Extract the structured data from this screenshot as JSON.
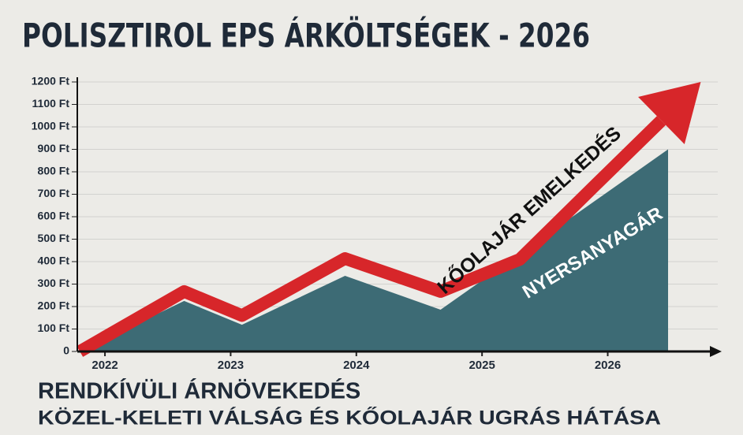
{
  "chart_data": {
    "type": "area",
    "title": "POLISZTIROL EPS ÁRKÖLTSÉGEK - 2026",
    "subtitle": "RENDKÍVÜLI ÁRNÖVEKEDÉS",
    "note": "KÖZEL-KELETI VÁLSÁG ÉS KŐOLAJÁR UGRÁS HÁTÁSA",
    "xlim": [
      2021.78,
      2026.8
    ],
    "xticks": [
      2022,
      2023,
      2024,
      2025,
      2026
    ],
    "ylim": [
      0,
      1200
    ],
    "yticks": [
      0,
      {
        "value": 100,
        "label": "100 Ft"
      },
      {
        "value": 200,
        "label": "200 Ft"
      },
      {
        "value": 300,
        "label": "300 Ft"
      },
      {
        "value": 400,
        "label": "400 Ft"
      },
      {
        "value": 500,
        "label": "500 Ft"
      },
      {
        "value": 600,
        "label": "600 Ft"
      },
      {
        "value": 700,
        "label": "700 Ft"
      },
      {
        "value": 800,
        "label": "800 Ft"
      },
      {
        "value": 900,
        "label": "900 Ft"
      },
      {
        "value": 1000,
        "label": "1000 Ft"
      },
      {
        "value": 1100,
        "label": "1100 Ft"
      },
      {
        "value": 1200,
        "label": "1200 Ft"
      }
    ],
    "grid": true,
    "series": [
      {
        "name": "NYERSANYAGÁR",
        "color": "#3d6b75",
        "kind": "area",
        "x": [
          2021.8,
          2022.63,
          2023.09,
          2023.91,
          2024.67,
          2026.48
        ],
        "values": [
          0,
          225,
          119,
          337,
          186,
          900
        ]
      },
      {
        "name": "KŐOLAJÁR EMELKEDÉS",
        "color": "#d7262a",
        "kind": "arrow",
        "x": [
          2021.8,
          2022.63,
          2023.09,
          2023.91,
          2024.67,
          2025.3,
          2025.9,
          2026.74
        ],
        "values": [
          0,
          267,
          160,
          414,
          267,
          410,
          740,
          1200
        ]
      }
    ]
  }
}
